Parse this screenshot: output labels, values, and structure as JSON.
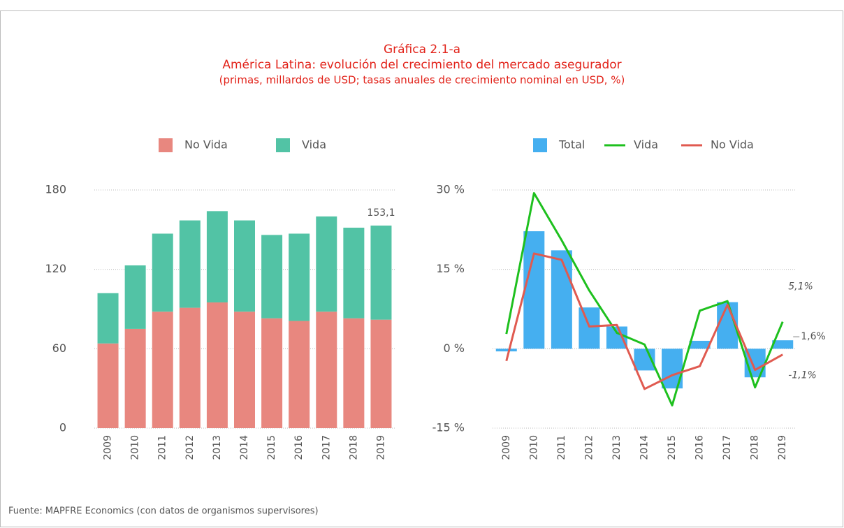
{
  "header": {
    "title": "Gráfica 2.1-a",
    "subtitle": "América Latina: evolución del crecimiento del mercado asegurador",
    "note": "(primas, millardos de USD; tasas anuales de crecimiento nominal en USD, %)"
  },
  "chart_data": [
    {
      "type": "bar",
      "stacked": true,
      "categories": [
        "2009",
        "2010",
        "2011",
        "2012",
        "2013",
        "2014",
        "2015",
        "2016",
        "2017",
        "2018",
        "2019"
      ],
      "series": [
        {
          "name": "No Vida",
          "color": "#e8877f",
          "values": [
            64,
            75,
            88,
            91,
            95,
            88,
            83,
            81,
            88,
            83,
            82
          ]
        },
        {
          "name": "Vida",
          "color": "#52c3a5",
          "values": [
            38,
            48,
            59,
            66,
            69,
            69,
            63,
            66,
            72,
            68.5,
            71.1
          ]
        }
      ],
      "annotations": [
        {
          "label": "153,1",
          "value": 153.1,
          "category": 10
        }
      ],
      "ylim": [
        0,
        180
      ],
      "yticks": [
        0,
        60,
        120,
        180
      ],
      "grid": true
    },
    {
      "type": "combo",
      "categories": [
        "2009",
        "2010",
        "2011",
        "2012",
        "2013",
        "2014",
        "2015",
        "2016",
        "2017",
        "2018",
        "2019"
      ],
      "series": [
        {
          "name": "Total",
          "mark": "bar",
          "color": "#45aff0",
          "values": [
            -0.5,
            22.2,
            18.6,
            7.8,
            4.2,
            -4.1,
            -7.5,
            1.5,
            8.8,
            -5.4,
            1.6
          ],
          "value_labels": [
            null,
            null,
            null,
            null,
            null,
            null,
            null,
            null,
            null,
            null,
            "1,6%"
          ]
        },
        {
          "name": "Vida",
          "mark": "line",
          "color": "#1ec01e",
          "values": [
            2.8,
            29.4,
            20.5,
            11,
            3,
            0.8,
            -10.7,
            7.2,
            9,
            -7.3,
            5.1
          ],
          "value_labels": [
            null,
            null,
            null,
            null,
            null,
            null,
            null,
            null,
            null,
            null,
            "5,1%"
          ]
        },
        {
          "name": "No Vida",
          "mark": "line",
          "color": "#e05a50",
          "values": [
            -2.3,
            18,
            16.8,
            4.2,
            4.5,
            -7.6,
            -5.0,
            -3.3,
            8.3,
            -4,
            -1.1
          ],
          "value_labels": [
            null,
            null,
            null,
            null,
            null,
            null,
            null,
            null,
            null,
            null,
            "-1,1%"
          ]
        }
      ],
      "ylim": [
        -15,
        30
      ],
      "yticks": [
        {
          "value": -15,
          "label": "-15 %"
        },
        {
          "value": 0,
          "label": "0 %"
        },
        {
          "value": 15,
          "label": "15 %"
        },
        {
          "value": 30,
          "label": "30 %"
        }
      ],
      "grid": true
    }
  ],
  "source": "Fuente: MAPFRE Economics (con datos de organismos supervisores)"
}
